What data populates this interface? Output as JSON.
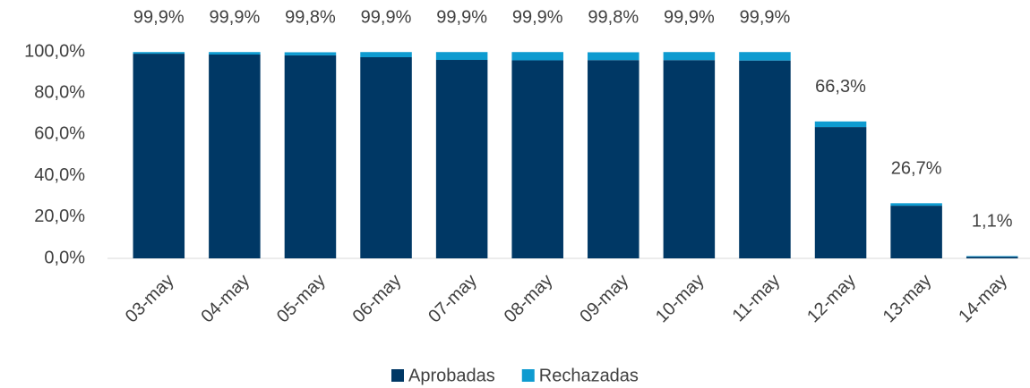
{
  "chart_data": {
    "type": "stacked_bar",
    "categories": [
      "03-may",
      "04-may",
      "05-may",
      "06-may",
      "07-may",
      "08-may",
      "09-may",
      "10-may",
      "11-may",
      "12-may",
      "13-may",
      "14-may"
    ],
    "series": [
      {
        "name": "Aprobadas",
        "color": "#003865",
        "values": [
          99.1,
          98.7,
          98.3,
          97.4,
          96.1,
          95.9,
          96.0,
          96.0,
          95.8,
          63.6,
          25.5,
          0.8
        ]
      },
      {
        "name": "Rechazadas",
        "color": "#0e9bd0",
        "values": [
          0.8,
          1.2,
          1.5,
          2.5,
          3.8,
          4.0,
          3.8,
          3.9,
          4.1,
          2.7,
          1.2,
          0.3
        ]
      }
    ],
    "totals": [
      99.9,
      99.9,
      99.8,
      99.9,
      99.9,
      99.9,
      99.8,
      99.9,
      99.9,
      66.3,
      26.7,
      1.1
    ],
    "total_labels": [
      "99,9%",
      "99,9%",
      "99,8%",
      "99,9%",
      "99,9%",
      "99,9%",
      "99,8%",
      "99,9%",
      "99,9%",
      "66,3%",
      "26,7%",
      "1,1%"
    ],
    "ylim": [
      0,
      100
    ],
    "yticks": [
      {
        "value": 0,
        "label": "0,0%"
      },
      {
        "value": 20,
        "label": "20,0%"
      },
      {
        "value": 40,
        "label": "40,0%"
      },
      {
        "value": 60,
        "label": "60,0%"
      },
      {
        "value": 80,
        "label": "80,0%"
      },
      {
        "value": 100,
        "label": "100,0%"
      }
    ],
    "legend": "bottom"
  }
}
